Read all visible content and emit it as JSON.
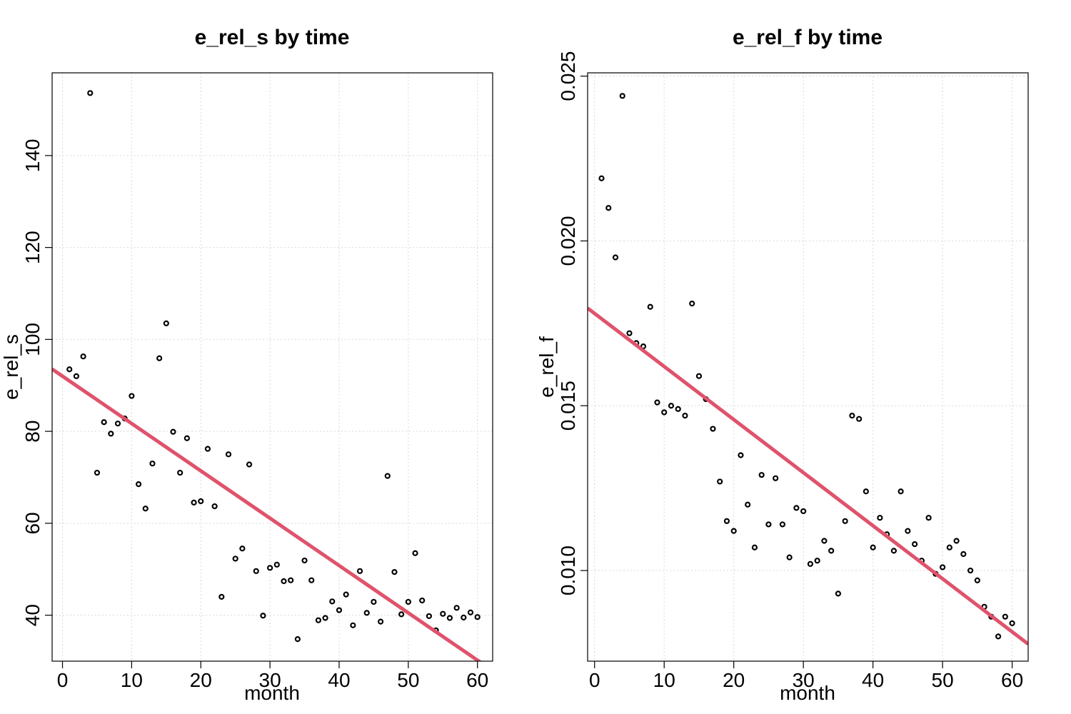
{
  "chart_data": [
    {
      "type": "scatter",
      "title": "e_rel_s by time",
      "xlabel": "month",
      "ylabel": "e_rel_s",
      "xlim": [
        -1.5,
        62.2
      ],
      "ylim": [
        30,
        158
      ],
      "xticks": [
        0,
        10,
        20,
        30,
        40,
        50,
        60
      ],
      "yticks": [
        40,
        60,
        80,
        100,
        120,
        140
      ],
      "grid": true,
      "fit_color": "#df536b",
      "fit_line": {
        "intercept": 92.0,
        "slope": -1.03
      },
      "x": [
        1,
        2,
        3,
        4,
        5,
        6,
        7,
        8,
        9,
        10,
        11,
        12,
        13,
        14,
        15,
        16,
        17,
        18,
        19,
        20,
        21,
        22,
        23,
        24,
        25,
        26,
        27,
        28,
        29,
        30,
        31,
        32,
        33,
        34,
        35,
        36,
        37,
        38,
        39,
        40,
        41,
        42,
        43,
        44,
        45,
        46,
        47,
        48,
        49,
        50,
        51,
        52,
        53,
        54,
        55,
        56,
        57,
        58,
        59,
        60
      ],
      "y": [
        93.5,
        92.0,
        96.3,
        153.6,
        71.0,
        82.0,
        79.5,
        81.7,
        82.8,
        87.7,
        68.5,
        63.2,
        73.0,
        95.9,
        103.5,
        79.9,
        71.0,
        78.5,
        64.5,
        64.8,
        76.2,
        63.7,
        44.0,
        75.0,
        52.3,
        54.5,
        72.8,
        49.6,
        39.9,
        50.3,
        51.0,
        47.4,
        47.6,
        34.8,
        51.9,
        47.6,
        38.9,
        39.4,
        43.0,
        41.1,
        44.5,
        37.8,
        49.6,
        40.5,
        42.9,
        38.6,
        70.3,
        49.4,
        40.2,
        42.9,
        53.5,
        43.2,
        39.8,
        36.7,
        40.3,
        39.4,
        41.6,
        39.5,
        40.6,
        39.6
      ]
    },
    {
      "type": "scatter",
      "title": "e_rel_f by time",
      "xlabel": "month",
      "ylabel": "e_rel_f",
      "xlim": [
        -1.0,
        62.3
      ],
      "ylim": [
        0.00725,
        0.0251
      ],
      "xticks": [
        0,
        10,
        20,
        30,
        40,
        50,
        60
      ],
      "yticks": [
        "0.010",
        "0.015",
        "0.020",
        "0.025"
      ],
      "grid": true,
      "fit_color": "#df536b",
      "fit_line": {
        "intercept": 0.0178,
        "slope": -0.000161
      },
      "x": [
        1,
        2,
        3,
        4,
        5,
        6,
        7,
        8,
        9,
        10,
        11,
        12,
        13,
        14,
        15,
        16,
        17,
        18,
        19,
        20,
        21,
        22,
        23,
        24,
        25,
        26,
        27,
        28,
        29,
        30,
        31,
        32,
        33,
        34,
        35,
        36,
        37,
        38,
        39,
        40,
        41,
        42,
        43,
        44,
        45,
        46,
        47,
        48,
        49,
        50,
        51,
        52,
        53,
        54,
        55,
        56,
        57,
        58,
        59,
        60
      ],
      "y": [
        0.0219,
        0.021,
        0.0195,
        0.0244,
        0.0172,
        0.0169,
        0.0168,
        0.018,
        0.0151,
        0.0148,
        0.015,
        0.0149,
        0.0147,
        0.0181,
        0.0159,
        0.0152,
        0.0143,
        0.0127,
        0.0115,
        0.0112,
        0.0135,
        0.012,
        0.0107,
        0.0129,
        0.0114,
        0.0128,
        0.0114,
        0.0104,
        0.0119,
        0.0118,
        0.0102,
        0.0103,
        0.0109,
        0.0106,
        0.0093,
        0.0115,
        0.0147,
        0.0146,
        0.0124,
        0.0107,
        0.0116,
        0.0111,
        0.0106,
        0.0124,
        0.0112,
        0.0108,
        0.0103,
        0.0116,
        0.0099,
        0.0101,
        0.0107,
        0.0109,
        0.0105,
        0.01,
        0.0097,
        0.0089,
        0.0086,
        0.008,
        0.0086,
        0.0084
      ]
    }
  ]
}
